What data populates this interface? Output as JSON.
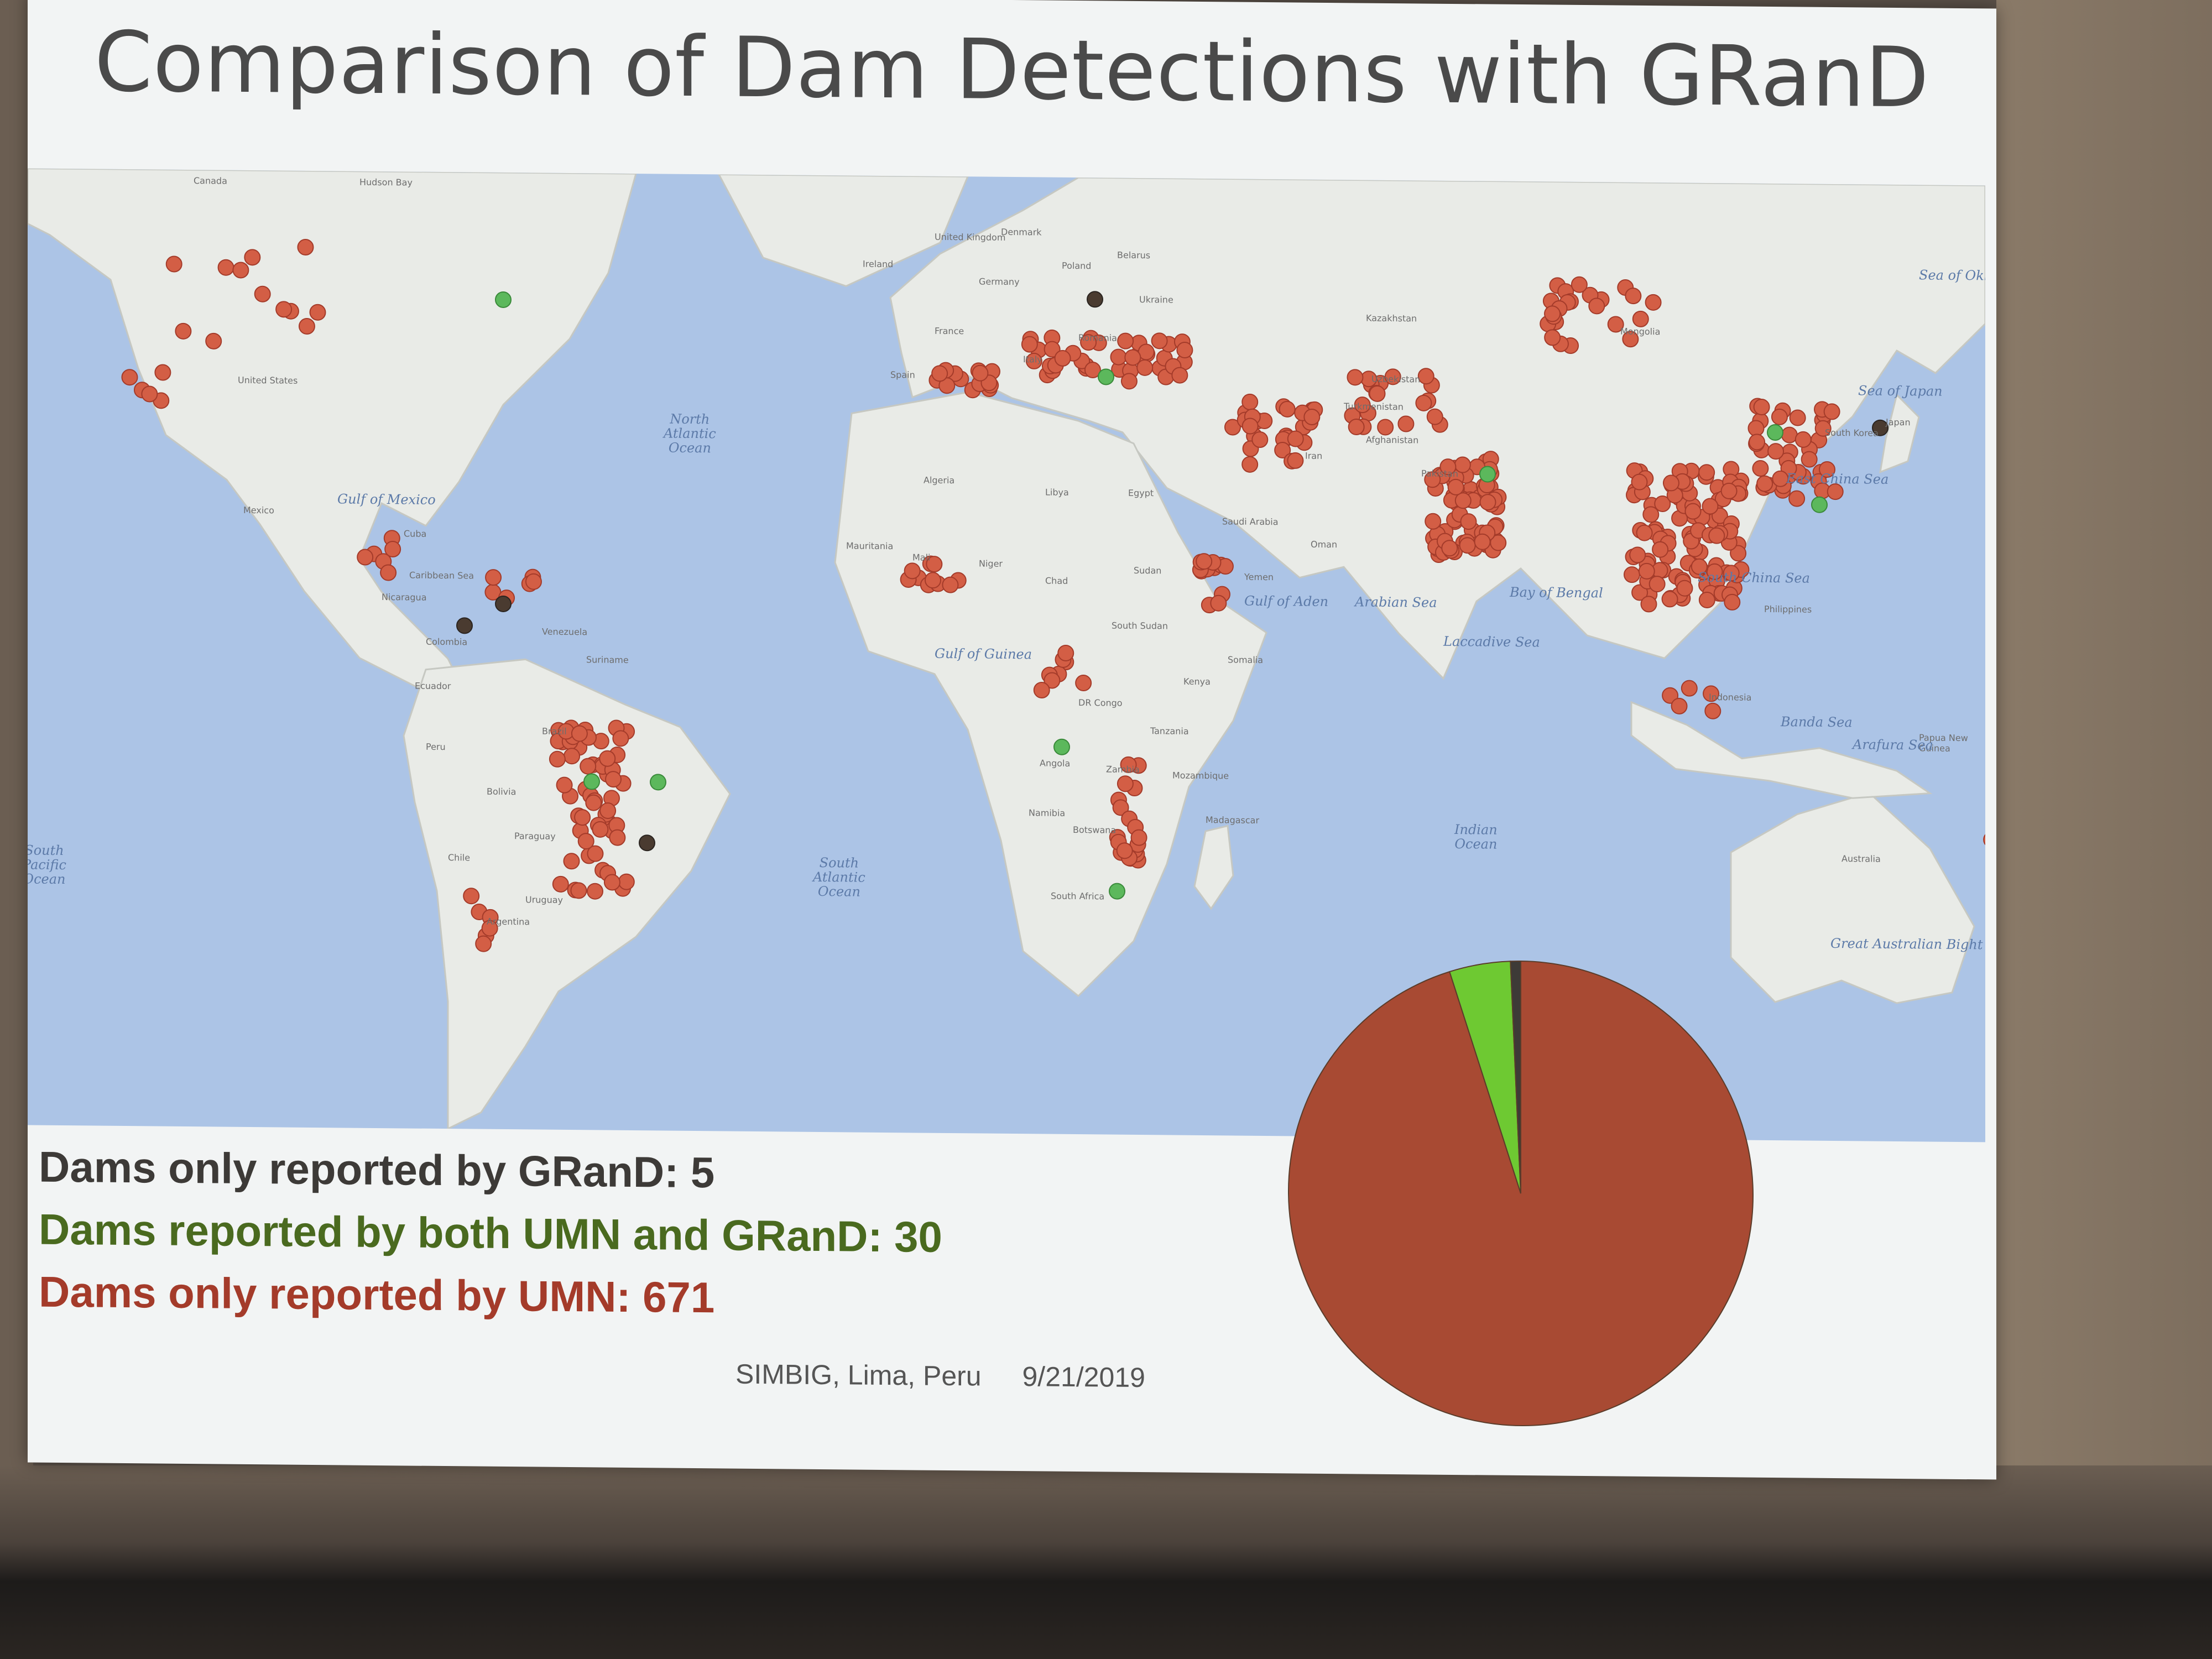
{
  "slide": {
    "title": "Comparison of Dam Detections with GRanD",
    "footer_venue": "SIMBIG, Lima, Peru",
    "footer_date": "9/21/2019"
  },
  "legend": [
    {
      "text": "Dams only reported by GRanD: 5",
      "color": "#3d3a37"
    },
    {
      "text": "Dams reported by both UMN and GRanD: 30",
      "color": "#4a6a1f"
    },
    {
      "text": "Dams only reported by UMN: 671",
      "color": "#a43b2a"
    }
  ],
  "map": {
    "colors": {
      "umn_only": "#d35e45",
      "both": "#5cb85c",
      "grand_only": "#4a3b30",
      "ocean": "#acc4e6",
      "land": "#e9ebe7"
    },
    "country_labels": [
      "Canada",
      "Hudson Bay",
      "United States",
      "Mexico",
      "Cuba",
      "Caribbean Sea",
      "Colombia",
      "Peru",
      "Brazil",
      "Bolivia",
      "Paraguay",
      "Chile",
      "Argentina",
      "Uruguay",
      "United Kingdom",
      "Ireland",
      "Denmark",
      "Poland",
      "Belarus",
      "Germany",
      "France",
      "Ukraine",
      "Romania",
      "Italy",
      "Spain",
      "Algeria",
      "Libya",
      "Egypt",
      "Mali",
      "Niger",
      "Mauritania",
      "Chad",
      "Sudan",
      "South Sudan",
      "Saudi Arabia",
      "Yemen",
      "Oman",
      "Somalia",
      "Kenya",
      "Tanzania",
      "DR Congo",
      "Angola",
      "Zambia",
      "Namibia",
      "Botswana",
      "Mozambique",
      "Madagascar",
      "South Africa",
      "Kazakhstan",
      "Mongolia",
      "Uzbekistan",
      "Turkmenistan",
      "Afghanistan",
      "Pakistan",
      "Iran",
      "Japan",
      "South Korea",
      "Philippines",
      "Indonesia",
      "Papua New Guinea",
      "Australia",
      "Suriname",
      "Venezuela",
      "Ecuador",
      "Nicaragua"
    ],
    "ocean_labels": [
      "North\nAtlantic\nOcean",
      "South\nAtlantic\nOcean",
      "Indian\nOcean",
      "South\nPacific\nOcean",
      "Arabian Sea",
      "Bay of Bengal",
      "Gulf of Mexico",
      "Gulf of Guinea",
      "Sea of Japan",
      "East China Sea",
      "South China Sea",
      "Banda Sea",
      "Arafura Sea",
      "Great Australian Bight",
      "Laccadive Sea",
      "Sea of Okhotsk",
      "Gulf of Aden"
    ]
  },
  "chart_data": {
    "type": "pie",
    "title": "",
    "slices": [
      {
        "label": "Dams only reported by UMN",
        "value": 671,
        "color": "#a84a33"
      },
      {
        "label": "Dams reported by both UMN and GRanD",
        "value": 30,
        "color": "#6ec932"
      },
      {
        "label": "Dams only reported by GRanD",
        "value": 5,
        "color": "#3d3a37"
      }
    ],
    "start": "top",
    "direction": "counterclockwise"
  }
}
